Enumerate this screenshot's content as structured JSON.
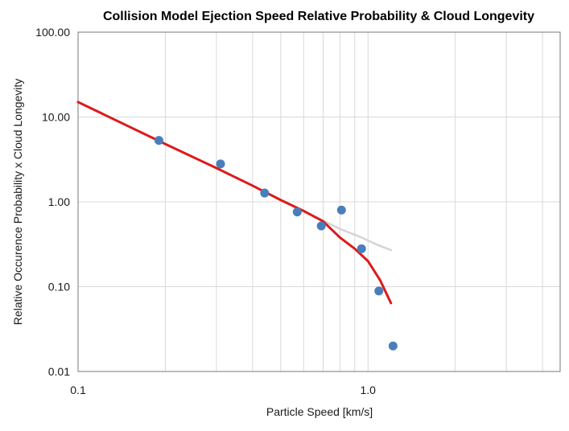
{
  "chart_data": {
    "type": "scatter",
    "title": "Collision Model Ejection Speed Relative Probability & Cloud Longevity",
    "xlabel": "Particle Speed [km/s]",
    "ylabel": "Relative Occurence Probability x Cloud Longevity",
    "x_scale": "log",
    "y_scale": "log",
    "xlim": [
      0.1,
      4.6
    ],
    "ylim": [
      0.01,
      100
    ],
    "x_ticks": [
      0.1,
      1.0
    ],
    "x_tick_labels": [
      "0.1",
      "1.0"
    ],
    "y_ticks": [
      0.01,
      0.1,
      1,
      10,
      100
    ],
    "y_tick_labels": [
      "0.01",
      "0.10",
      "1.00",
      "10.00",
      "100.00"
    ],
    "grid": {
      "x_major": true,
      "x_minor": true,
      "y_major": true
    },
    "legend": "none",
    "series": [
      {
        "kind": "points",
        "color": "#4a7ebb",
        "x": [
          0.19,
          0.31,
          0.44,
          0.57,
          0.69,
          0.81,
          0.95,
          1.09,
          1.22
        ],
        "y": [
          5.3,
          2.8,
          1.27,
          0.76,
          0.52,
          0.8,
          0.28,
          0.089,
          0.02
        ]
      },
      {
        "kind": "line",
        "color": "#dd1a1a",
        "x": [
          0.1,
          0.2,
          0.3,
          0.4,
          0.5,
          0.6,
          0.7,
          0.8,
          0.9,
          1.0,
          1.1,
          1.2
        ],
        "y": [
          15.0,
          4.8,
          2.5,
          1.55,
          1.05,
          0.78,
          0.59,
          0.38,
          0.28,
          0.2,
          0.12,
          0.064
        ]
      },
      {
        "kind": "line",
        "color": "#d4d4d4",
        "x": [
          0.57,
          0.7,
          0.8,
          0.95,
          1.08,
          1.2
        ],
        "y": [
          0.84,
          0.6,
          0.48,
          0.38,
          0.31,
          0.27
        ]
      }
    ]
  }
}
